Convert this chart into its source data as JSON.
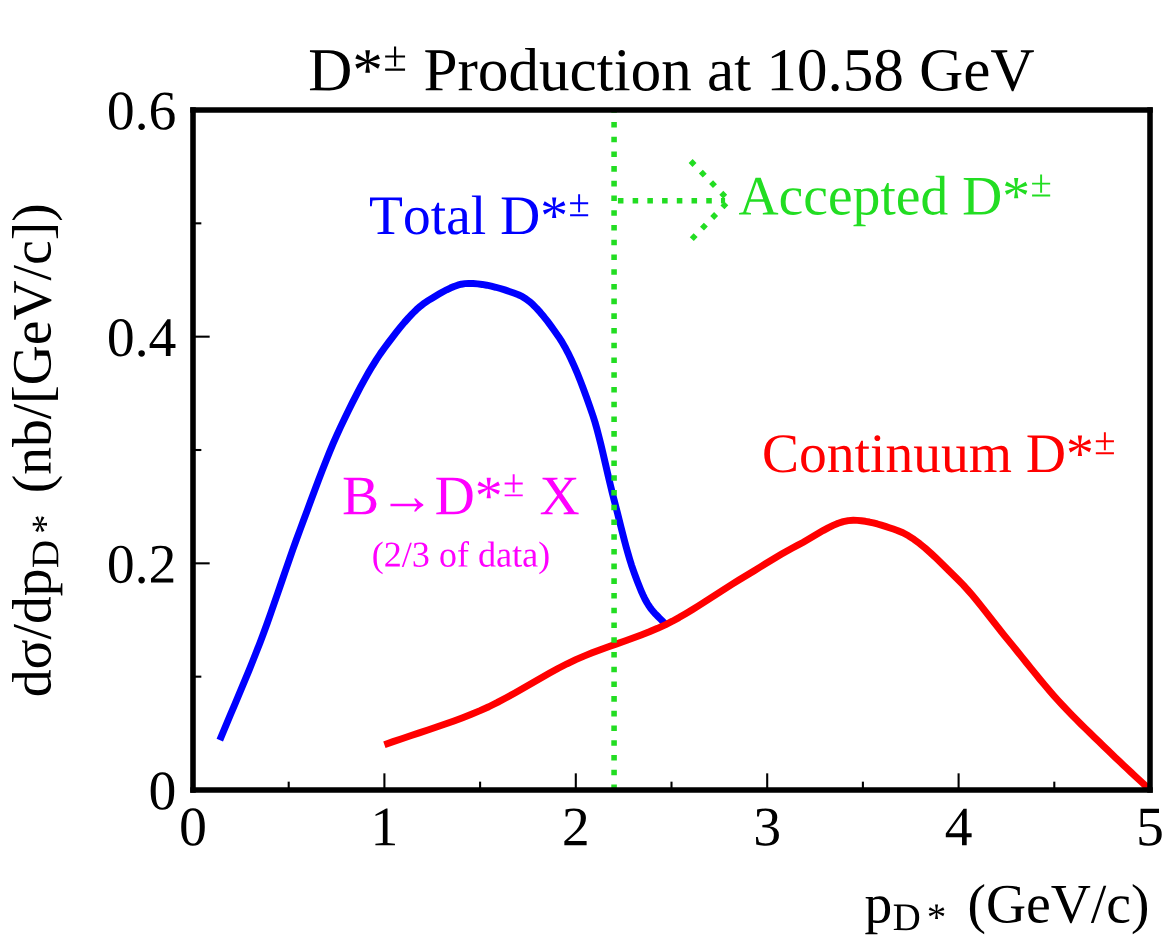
{
  "chart_data": {
    "type": "line",
    "title": "D*$^{±}$ Production at 10.58 GeV",
    "xlabel": "p$_{D*}$ (GeV/c)",
    "ylabel": "dσ/dp$_{D*}$ (nb/[GeV/c])",
    "series": [
      {
        "name": "Total D*$^{±}$",
        "color": "#0000ff",
        "x": [
          0.14,
          0.35,
          0.56,
          0.77,
          1.0,
          1.23,
          1.44,
          1.7,
          1.91,
          2.09,
          2.2,
          2.3,
          2.38,
          2.47
        ],
        "values": [
          0.044,
          0.13,
          0.23,
          0.32,
          0.39,
          0.432,
          0.447,
          0.437,
          0.4,
          0.33,
          0.256,
          0.194,
          0.163,
          0.146
        ]
      },
      {
        "name": "Continuum D*$^{±}$",
        "color": "#ff0000",
        "x": [
          1.0,
          1.5,
          2.0,
          2.47,
          2.85,
          3.16,
          3.45,
          3.68,
          4.0,
          4.26,
          4.52,
          4.78,
          5.0
        ],
        "values": [
          0.04,
          0.07,
          0.115,
          0.146,
          0.185,
          0.216,
          0.238,
          0.229,
          0.185,
          0.132,
          0.079,
          0.035,
          0.0
        ]
      }
    ],
    "xlim": [
      0,
      5
    ],
    "xticks": [
      0,
      {
        "value": 0.5,
        "label": null
      },
      1,
      {
        "value": 1.5,
        "label": null
      },
      2,
      {
        "value": 2.5,
        "label": null
      },
      3,
      {
        "value": 3.5,
        "label": null
      },
      4,
      {
        "value": 4.5,
        "label": null
      },
      5
    ],
    "ylim": [
      0,
      0.6
    ],
    "yticks": [
      0,
      {
        "value": 0.1,
        "label": null
      },
      0.2,
      {
        "value": 0.3,
        "label": null
      },
      0.4,
      {
        "value": 0.5,
        "label": null
      },
      0.6
    ],
    "ref_lines": [
      {
        "axis": "x",
        "value": 2.2,
        "color": "#22dd22",
        "line_style": "dotted"
      }
    ],
    "annotations": [
      "B→D*$^{±}$ X",
      "(2/3 of data)",
      {
        "text": "Accepted D*$^{±}$",
        "x": 2.2,
        "y": 0.52
      }
    ],
    "grid": false,
    "legend": false,
    "line_style": "solid",
    "marker": "none"
  }
}
